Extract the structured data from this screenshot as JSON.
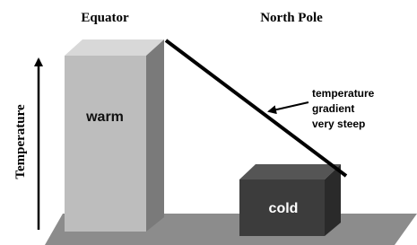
{
  "header": {
    "left": "Equator",
    "right": "North Pole"
  },
  "axis": {
    "label": "Temperature"
  },
  "boxes": [
    {
      "label": "warm"
    },
    {
      "label": "cold"
    }
  ],
  "annotation": {
    "lines": [
      "temperature",
      "gradient",
      "very steep"
    ]
  }
}
